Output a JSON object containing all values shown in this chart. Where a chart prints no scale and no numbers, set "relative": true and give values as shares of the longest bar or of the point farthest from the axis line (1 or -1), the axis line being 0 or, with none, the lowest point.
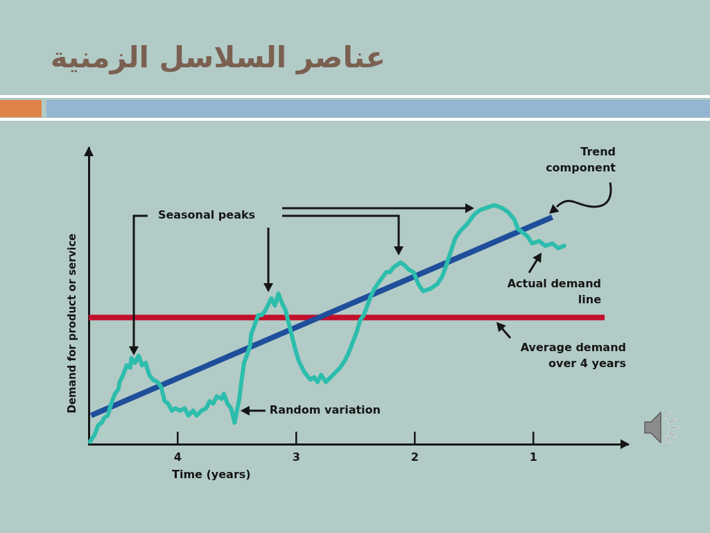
{
  "chart_data": {
    "type": "line",
    "title": "عناصر السلاسل الزمنية",
    "xlabel": "Time (years)",
    "ylabel": "Demand for product or service",
    "relative": true,
    "xlim": [
      4.75,
      0.2
    ],
    "xticks": [
      4,
      3,
      2,
      1
    ],
    "series": [
      {
        "color": "#2dbdac",
        "x": [
          4.74,
          4.7,
          4.67,
          4.64,
          4.62,
          4.59,
          4.56,
          4.53,
          4.5,
          4.49,
          4.46,
          4.43,
          4.4,
          4.39,
          4.36,
          4.33,
          4.3,
          4.27,
          4.24,
          4.21,
          4.17,
          4.14,
          4.11,
          4.08,
          4.05,
          4.02,
          3.98,
          3.94,
          3.91,
          3.87,
          3.84,
          3.8,
          3.76,
          3.73,
          3.7,
          3.67,
          3.63,
          3.61,
          3.58,
          3.55,
          3.52,
          3.5,
          3.48,
          3.46,
          3.44,
          3.41,
          3.39,
          3.38,
          3.35,
          3.32,
          3.29,
          3.26,
          3.24,
          3.21,
          3.18,
          3.15,
          3.12,
          3.09,
          3.07,
          3.04,
          3.01,
          2.98,
          2.95,
          2.93,
          2.88,
          2.85,
          2.82,
          2.79,
          2.75,
          2.71,
          2.67,
          2.63,
          2.59,
          2.56,
          2.52,
          2.49,
          2.46,
          2.43,
          2.4,
          2.37,
          2.34,
          2.3,
          2.27,
          2.24,
          2.21,
          2.18,
          2.12,
          2.09,
          2.05,
          2.01,
          1.97,
          1.93,
          1.87,
          1.81,
          1.77,
          1.74,
          1.7,
          1.66,
          1.62,
          1.56,
          1.5,
          1.45,
          1.39,
          1.33,
          1.27,
          1.21,
          1.16,
          1.13,
          1.1,
          1.05,
          1.01,
          0.95,
          0.9,
          0.84,
          0.79,
          0.74
        ],
        "values": [
          0.01,
          0.04,
          0.08,
          0.09,
          0.11,
          0.12,
          0.17,
          0.21,
          0.23,
          0.26,
          0.29,
          0.33,
          0.32,
          0.36,
          0.34,
          0.37,
          0.33,
          0.34,
          0.29,
          0.27,
          0.26,
          0.24,
          0.18,
          0.17,
          0.14,
          0.15,
          0.14,
          0.15,
          0.12,
          0.14,
          0.12,
          0.14,
          0.15,
          0.18,
          0.17,
          0.2,
          0.19,
          0.21,
          0.17,
          0.15,
          0.09,
          0.14,
          0.19,
          0.27,
          0.34,
          0.38,
          0.41,
          0.46,
          0.5,
          0.54,
          0.54,
          0.56,
          0.58,
          0.61,
          0.58,
          0.63,
          0.59,
          0.56,
          0.52,
          0.46,
          0.4,
          0.35,
          0.32,
          0.3,
          0.27,
          0.28,
          0.26,
          0.29,
          0.26,
          0.28,
          0.3,
          0.32,
          0.35,
          0.38,
          0.43,
          0.47,
          0.52,
          0.54,
          0.58,
          0.62,
          0.65,
          0.68,
          0.7,
          0.72,
          0.72,
          0.74,
          0.76,
          0.75,
          0.73,
          0.72,
          0.67,
          0.64,
          0.65,
          0.67,
          0.7,
          0.74,
          0.8,
          0.86,
          0.89,
          0.92,
          0.96,
          0.98,
          0.99,
          1.0,
          0.99,
          0.97,
          0.94,
          0.9,
          0.89,
          0.87,
          0.84,
          0.85,
          0.83,
          0.84,
          0.82,
          0.83
        ]
      },
      {
        "type": "line",
        "color": "#1f4e9b",
        "x": [
          4.73,
          0.84
        ],
        "values": [
          0.12,
          0.95
        ]
      }
    ],
    "ref_lines": [
      {
        "axis": "y",
        "value": 0.53,
        "label": "Average demand over 4 years",
        "color": "#c10f2c"
      }
    ],
    "annotations": [
      "Seasonal peaks",
      {
        "text": "Random variation",
        "x": 3.47,
        "y": 0.14
      },
      "Trend component",
      "Actual demand line"
    ]
  }
}
